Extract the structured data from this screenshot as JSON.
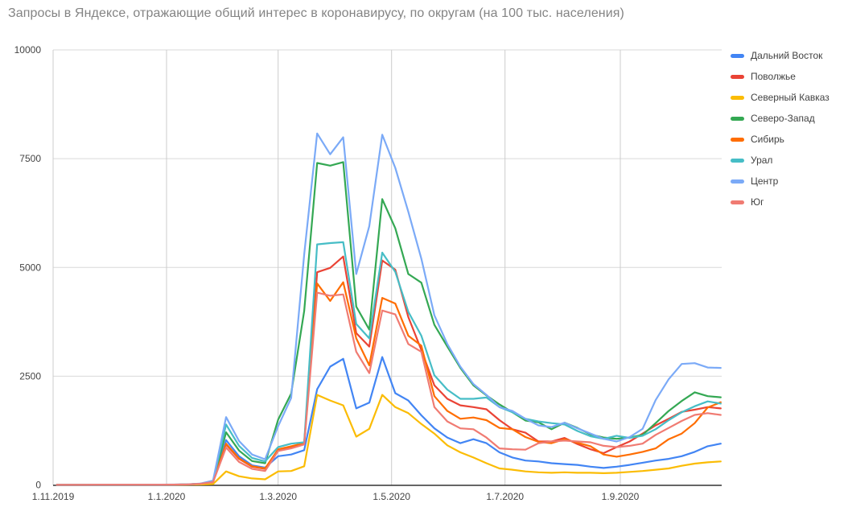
{
  "chart": {
    "title": "Запросы в Яндексе, отражающие общий интерес в коронавирусу, по округам (на 100 тыс. населения)"
  },
  "chart_data": {
    "type": "line",
    "title": "Запросы в Яндексе, отражающие общий интерес в коронавирусу, по округам (на 100 тыс. населения)",
    "xlabel": "",
    "ylabel": "",
    "ylim": [
      0,
      10000
    ],
    "grid": true,
    "legend_position": "right",
    "background": "#ffffff",
    "y_axis": {
      "ticks": [
        0,
        2500,
        5000,
        7500,
        10000
      ]
    },
    "x_axis": {
      "ticks": [
        "1.11.2019",
        "1.1.2020",
        "1.3.2020",
        "1.5.2020",
        "1.7.2020",
        "1.9.2020"
      ]
    },
    "dates": [
      "3.11.2019",
      "10.11.2019",
      "17.11.2019",
      "24.11.2019",
      "1.12.2019",
      "8.12.2019",
      "15.12.2019",
      "22.12.2019",
      "29.12.2019",
      "5.1.2020",
      "12.1.2020",
      "19.1.2020",
      "26.1.2020",
      "2.2.2020",
      "9.2.2020",
      "16.2.2020",
      "23.2.2020",
      "1.3.2020",
      "8.3.2020",
      "15.3.2020",
      "22.3.2020",
      "29.3.2020",
      "5.4.2020",
      "12.4.2020",
      "19.4.2020",
      "26.4.2020",
      "3.5.2020",
      "10.5.2020",
      "17.5.2020",
      "24.5.2020",
      "31.5.2020",
      "7.6.2020",
      "14.6.2020",
      "21.6.2020",
      "28.6.2020",
      "5.7.2020",
      "12.7.2020",
      "19.7.2020",
      "26.7.2020",
      "2.8.2020",
      "9.8.2020",
      "16.8.2020",
      "23.8.2020",
      "30.8.2020",
      "6.9.2020",
      "13.9.2020",
      "20.9.2020",
      "27.9.2020",
      "4.10.2020",
      "11.10.2020",
      "18.10.2020",
      "25.10.2020"
    ],
    "series": [
      {
        "name": "Дальний Восток",
        "slug": "dalniy-vostok",
        "color": "#4285F4",
        "values": [
          3,
          3,
          3,
          4,
          4,
          4,
          4,
          5,
          5,
          6,
          10,
          20,
          60,
          1030,
          660,
          450,
          400,
          660,
          700,
          800,
          2200,
          2720,
          2900,
          1760,
          1890,
          2940,
          2110,
          1940,
          1600,
          1300,
          1090,
          960,
          1050,
          960,
          750,
          630,
          560,
          540,
          500,
          480,
          460,
          420,
          390,
          420,
          460,
          510,
          560,
          600,
          660,
          760,
          890,
          950
        ]
      },
      {
        "name": "Поволжье",
        "slug": "povolzhye",
        "color": "#EA4335",
        "values": [
          4,
          4,
          4,
          4,
          5,
          5,
          5,
          5,
          6,
          7,
          12,
          25,
          70,
          930,
          600,
          420,
          370,
          800,
          870,
          950,
          4890,
          4990,
          5250,
          3490,
          3180,
          5160,
          4950,
          3860,
          3100,
          2290,
          1980,
          1830,
          1790,
          1740,
          1490,
          1280,
          1200,
          1000,
          1000,
          1080,
          940,
          820,
          730,
          870,
          1000,
          1180,
          1370,
          1520,
          1680,
          1730,
          1790,
          1760
        ]
      },
      {
        "name": "Северный Кавказ",
        "slug": "severnyy-kavkaz",
        "color": "#FBBC04",
        "values": [
          2,
          2,
          2,
          3,
          3,
          3,
          3,
          3,
          4,
          4,
          5,
          10,
          20,
          310,
          200,
          150,
          130,
          310,
          320,
          430,
          2070,
          1940,
          1830,
          1110,
          1290,
          2070,
          1790,
          1650,
          1400,
          1180,
          910,
          750,
          630,
          500,
          380,
          350,
          310,
          290,
          280,
          290,
          280,
          280,
          270,
          280,
          300,
          320,
          350,
          380,
          440,
          490,
          520,
          540
        ]
      },
      {
        "name": "Северо-Запад",
        "slug": "severo-zapad",
        "color": "#34A853",
        "values": [
          3,
          3,
          3,
          4,
          4,
          4,
          4,
          5,
          5,
          6,
          12,
          25,
          80,
          1210,
          790,
          550,
          500,
          1500,
          2100,
          4000,
          7400,
          7340,
          7420,
          4100,
          3570,
          6570,
          5900,
          4850,
          4650,
          3680,
          3180,
          2690,
          2290,
          2060,
          1850,
          1670,
          1480,
          1440,
          1280,
          1430,
          1310,
          1160,
          1090,
          1060,
          1090,
          1150,
          1420,
          1700,
          1930,
          2130,
          2040,
          2015
        ]
      },
      {
        "name": "Сибирь",
        "slug": "sibir",
        "color": "#FF6D01",
        "values": [
          3,
          3,
          3,
          4,
          4,
          4,
          4,
          5,
          5,
          6,
          12,
          25,
          70,
          950,
          610,
          430,
          380,
          820,
          890,
          960,
          4630,
          4230,
          4660,
          3370,
          2750,
          4300,
          4170,
          3430,
          3200,
          2040,
          1700,
          1520,
          1550,
          1490,
          1310,
          1280,
          1100,
          990,
          960,
          1050,
          970,
          890,
          700,
          650,
          700,
          760,
          840,
          1050,
          1180,
          1420,
          1780,
          1900
        ]
      },
      {
        "name": "Урал",
        "slug": "ural",
        "color": "#46BDC6",
        "values": [
          3,
          3,
          3,
          4,
          4,
          4,
          4,
          5,
          5,
          6,
          12,
          25,
          80,
          1390,
          900,
          620,
          540,
          870,
          950,
          980,
          5530,
          5560,
          5580,
          3700,
          3370,
          5340,
          4900,
          3980,
          3430,
          2520,
          2190,
          1980,
          1980,
          2010,
          1790,
          1670,
          1520,
          1460,
          1420,
          1390,
          1240,
          1120,
          1060,
          1130,
          1080,
          1130,
          1280,
          1490,
          1670,
          1810,
          1920,
          1870
        ]
      },
      {
        "name": "Центр",
        "slug": "tsentr",
        "color": "#7BAAF7",
        "values": [
          4,
          4,
          4,
          5,
          5,
          5,
          5,
          6,
          7,
          9,
          14,
          30,
          100,
          1560,
          1010,
          700,
          590,
          1350,
          2000,
          5300,
          8080,
          7600,
          7990,
          4850,
          5950,
          8050,
          7290,
          6280,
          5200,
          3900,
          3240,
          2720,
          2320,
          2070,
          1790,
          1700,
          1520,
          1370,
          1330,
          1430,
          1300,
          1180,
          1060,
          1000,
          1100,
          1290,
          1950,
          2430,
          2780,
          2800,
          2700,
          2690
        ]
      },
      {
        "name": "Юг",
        "slug": "yug",
        "color": "#F07B72",
        "values": [
          4,
          4,
          4,
          5,
          5,
          5,
          5,
          6,
          6,
          7,
          12,
          25,
          65,
          860,
          530,
          370,
          320,
          780,
          840,
          930,
          4420,
          4350,
          4380,
          3060,
          2570,
          4010,
          3920,
          3240,
          3060,
          1790,
          1460,
          1300,
          1280,
          1090,
          840,
          820,
          810,
          960,
          1000,
          1020,
          1000,
          980,
          900,
          870,
          900,
          950,
          1150,
          1310,
          1470,
          1610,
          1650,
          1610
        ]
      }
    ],
    "colors": {
      "axis_line": "#333333",
      "h_gridline": "#d9d9d9",
      "v_gridline": "#cccccc",
      "tick_text": "#444444",
      "title_text": "#848484"
    }
  }
}
